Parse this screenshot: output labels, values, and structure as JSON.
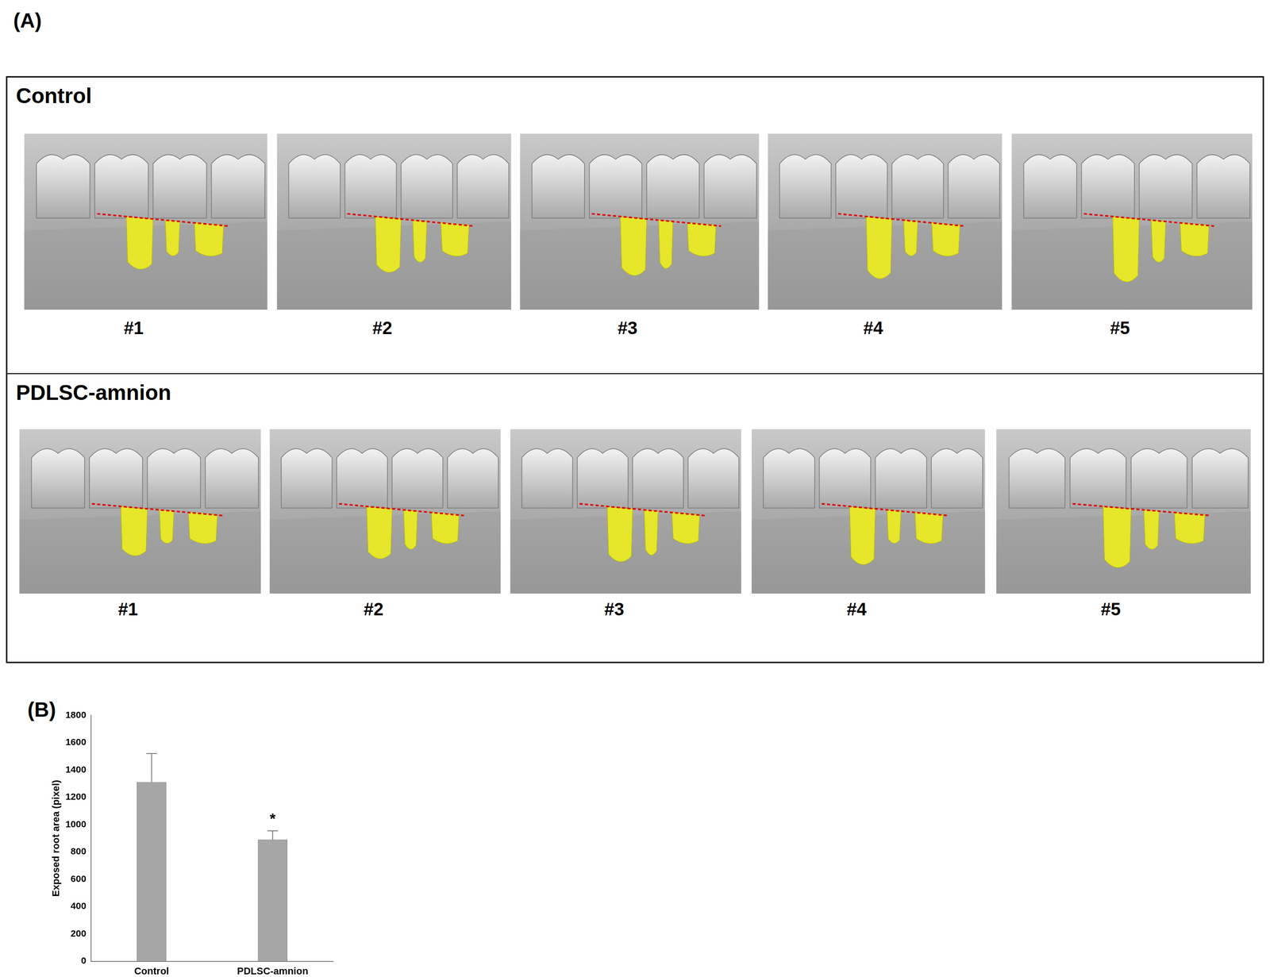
{
  "panels": {
    "A": {
      "label": "(A)",
      "groups": [
        {
          "title": "Control",
          "images": [
            "#1",
            "#2",
            "#3",
            "#4",
            "#5"
          ]
        },
        {
          "title": "PDLSC-amnion",
          "images": [
            "#1",
            "#2",
            "#3",
            "#4",
            "#5"
          ]
        }
      ]
    }
  },
  "chart_data": {
    "type": "bar",
    "title": "(B)",
    "y_label": "Exposed root area (pixel)",
    "categories": [
      "Control",
      "PDLSC-amnion"
    ],
    "values": [
      1310,
      890
    ],
    "errors": [
      210,
      65
    ],
    "color": "#a6a6a6",
    "ylim": [
      0,
      1800
    ],
    "yticks": [
      0,
      200,
      400,
      600,
      800,
      1000,
      1200,
      1400,
      1600,
      1800
    ],
    "grid": false,
    "annotations": [
      {
        "category": "PDLSC-amnion",
        "text": "*"
      }
    ]
  }
}
